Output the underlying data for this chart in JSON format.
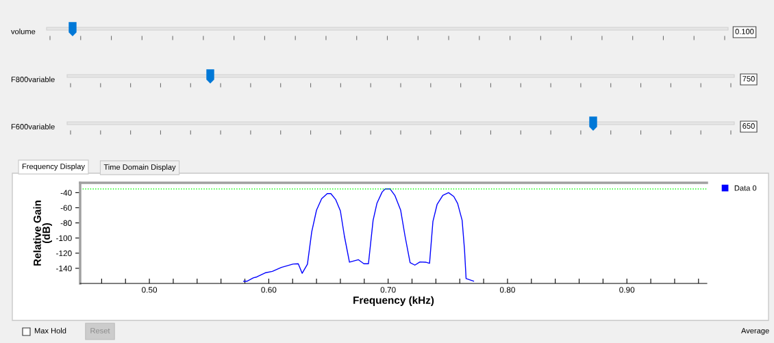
{
  "chart_data": [
    {
      "type": "other",
      "annotations": [
        "volume",
        "0.100",
        "F800variable",
        "750",
        "F600variable",
        "650",
        "Frequency Display",
        "Time Domain Display",
        "Max Hold",
        "Reset",
        "Average"
      ]
    },
    {
      "type": "line",
      "xlabel": "Frequency (kHz)",
      "ylabel": "Relative Gain\n(dB)",
      "series": [
        {
          "name": "Data 0",
          "color": "#0000ff",
          "x": [
            0.579,
            0.582,
            0.587,
            0.59,
            0.597,
            0.603,
            0.6105,
            0.616,
            0.6205,
            0.6247,
            0.628,
            0.6324,
            0.636,
            0.64,
            0.6443,
            0.649,
            0.652,
            0.656,
            0.66,
            0.6634,
            0.6676,
            0.675,
            0.6797,
            0.6835,
            0.6874,
            0.6906,
            0.695,
            0.6975,
            0.7017,
            0.7056,
            0.7105,
            0.7142,
            0.7184,
            0.7224,
            0.7266,
            0.7314,
            0.7347,
            0.7375,
            0.741,
            0.7458,
            0.7506,
            0.755,
            0.7582,
            0.762,
            0.764,
            0.7653,
            0.7716
          ],
          "values": [
            -157,
            -157,
            -152.7,
            -151.4,
            -146,
            -144,
            -138.8,
            -136.4,
            -134.3,
            -134,
            -146.6,
            -134.6,
            -91.8,
            -63.2,
            -48.1,
            -41.2,
            -41.2,
            -49,
            -64.1,
            -97.8,
            -131.9,
            -128.6,
            -134,
            -134,
            -76.7,
            -54.2,
            -39.1,
            -35.2,
            -35.2,
            -43.6,
            -63.2,
            -97.8,
            -132.5,
            -135.8,
            -131.6,
            -131.9,
            -133.4,
            -78.3,
            -55.7,
            -43.6,
            -40,
            -45.1,
            -54.2,
            -76.7,
            -115.9,
            -153.6,
            -156.9
          ]
        }
      ],
      "xlim": [
        0.442,
        0.967
      ],
      "ylim": [
        -160,
        -27
      ],
      "xticks": [
        {
          "value": 0.46,
          "label": null
        },
        {
          "value": 0.48,
          "label": null
        },
        {
          "value": 0.5,
          "label": "0.50"
        },
        {
          "value": 0.52,
          "label": null
        },
        {
          "value": 0.54,
          "label": null
        },
        {
          "value": 0.56,
          "label": null
        },
        {
          "value": 0.58,
          "label": null
        },
        {
          "value": 0.6,
          "label": "0.60"
        },
        {
          "value": 0.62,
          "label": null
        },
        {
          "value": 0.64,
          "label": null
        },
        {
          "value": 0.66,
          "label": null
        },
        {
          "value": 0.68,
          "label": null
        },
        {
          "value": 0.7,
          "label": "0.70"
        },
        {
          "value": 0.72,
          "label": null
        },
        {
          "value": 0.74,
          "label": null
        },
        {
          "value": 0.76,
          "label": null
        },
        {
          "value": 0.78,
          "label": null
        },
        {
          "value": 0.8,
          "label": "0.80"
        },
        {
          "value": 0.82,
          "label": null
        },
        {
          "value": 0.84,
          "label": null
        },
        {
          "value": 0.86,
          "label": null
        },
        {
          "value": 0.88,
          "label": null
        },
        {
          "value": 0.9,
          "label": "0.90"
        },
        {
          "value": 0.92,
          "label": null
        },
        {
          "value": 0.94,
          "label": null
        },
        {
          "value": 0.96,
          "label": null
        }
      ],
      "yticks": [
        -140,
        -120,
        -100,
        -80,
        -60,
        -40
      ],
      "ref_lines": [
        {
          "axis": "y",
          "value": -35.2,
          "color": "#00ff00",
          "line_style": "dotted"
        }
      ],
      "grid": false,
      "legend": "top right",
      "marker": "none",
      "line_style": "solid"
    }
  ]
}
